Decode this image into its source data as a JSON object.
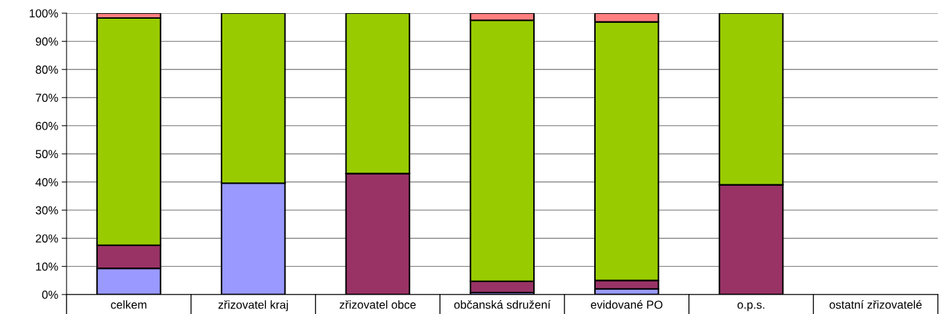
{
  "chart_data": {
    "type": "bar",
    "stacked": true,
    "categories": [
      "celkem",
      "zřizovatel kraj",
      "zřizovatel obce",
      "občanská sdružení",
      "evidované PO",
      "o.p.s.",
      "ostatní zřizovatelé"
    ],
    "series": [
      {
        "color": "#9999ff",
        "values": [
          9.3,
          39.6,
          null,
          0.7,
          2.0,
          null,
          null
        ]
      },
      {
        "color": "#993366",
        "values": [
          8.2,
          null,
          43,
          4.0,
          3.0,
          39,
          null
        ]
      },
      {
        "color": "#99cc00",
        "values": [
          80.8,
          60.4,
          57,
          92.8,
          91.9,
          61,
          null
        ]
      },
      {
        "color": "#ff8080",
        "values": [
          1.7,
          null,
          null,
          2.5,
          3.1,
          null,
          null
        ]
      }
    ],
    "ylim": [
      0,
      100
    ],
    "yticks": [
      {
        "value": 0,
        "label": "0%"
      },
      {
        "value": 10,
        "label": "10%"
      },
      {
        "value": 20,
        "label": "20%"
      },
      {
        "value": 30,
        "label": "30%"
      },
      {
        "value": 40,
        "label": "40%"
      },
      {
        "value": 50,
        "label": "50%"
      },
      {
        "value": 60,
        "label": "60%"
      },
      {
        "value": 70,
        "label": "70%"
      },
      {
        "value": 80,
        "label": "80%"
      },
      {
        "value": 90,
        "label": "90%"
      },
      {
        "value": 100,
        "label": "100%"
      }
    ],
    "grid": "y"
  }
}
